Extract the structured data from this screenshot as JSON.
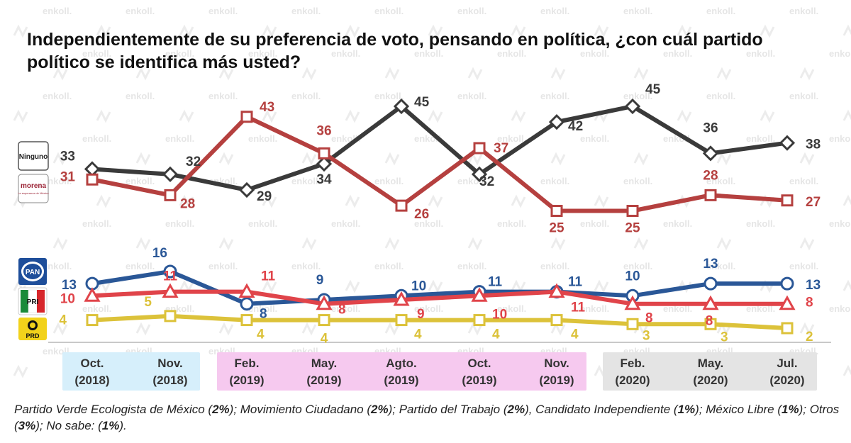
{
  "title": "Independientemente de su preferencia de voto, pensando en política, ¿con cuál partido político se identifica más usted?",
  "watermark": "enkoll.",
  "chart_data": {
    "type": "line",
    "categories": [
      {
        "month": "Oct.",
        "year": "(2018)"
      },
      {
        "month": "Nov.",
        "year": "(2018)"
      },
      {
        "month": "Feb.",
        "year": "(2019)"
      },
      {
        "month": "May.",
        "year": "(2019)"
      },
      {
        "month": "Agto.",
        "year": "(2019)"
      },
      {
        "month": "Oct.",
        "year": "(2019)"
      },
      {
        "month": "Nov.",
        "year": "(2019)"
      },
      {
        "month": "Feb.",
        "year": "(2020)"
      },
      {
        "month": "May.",
        "year": "(2020)"
      },
      {
        "month": "Jul.",
        "year": "(2020)"
      }
    ],
    "category_groups": [
      {
        "from": 0,
        "to": 1,
        "color": "#d6effb"
      },
      {
        "from": 2,
        "to": 6,
        "color": "#f6c9ef"
      },
      {
        "from": 7,
        "to": 9,
        "color": "#e4e4e4"
      }
    ],
    "series": [
      {
        "name": "Ninguno",
        "color": "#3a3a3a",
        "marker": "diamond",
        "values": [
          33,
          32,
          29,
          34,
          45,
          32,
          42,
          45,
          36,
          38
        ]
      },
      {
        "name": "Morena",
        "color": "#b5403f",
        "marker": "square",
        "values": [
          31,
          28,
          43,
          36,
          26,
          37,
          25,
          25,
          28,
          27
        ]
      },
      {
        "name": "PAN",
        "color": "#2a5797",
        "marker": "circle",
        "values": [
          13,
          16,
          8,
          9,
          10,
          11,
          11,
          10,
          13,
          13
        ]
      },
      {
        "name": "PRI",
        "color": "#e0444a",
        "marker": "triangle",
        "values": [
          10,
          11,
          11,
          8,
          9,
          10,
          11,
          8,
          8,
          8
        ]
      },
      {
        "name": "PRD",
        "color": "#dcc23a",
        "marker": "square",
        "values": [
          4,
          5,
          4,
          4,
          4,
          4,
          4,
          3,
          3,
          2
        ]
      }
    ],
    "legend": [
      {
        "series": "Ninguno",
        "text": "Ninguno"
      },
      {
        "series": "Morena",
        "text": "morena",
        "subtext": "La esperanza de México"
      },
      {
        "series": "PAN",
        "text": "PAN"
      },
      {
        "series": "PRI",
        "text": "PRI"
      },
      {
        "series": "PRD",
        "text": "PRD"
      }
    ]
  },
  "footnote": [
    {
      "text": "Partido Verde Ecologista de México (",
      "bold": false
    },
    {
      "text": "2%",
      "bold": true
    },
    {
      "text": "); Movimiento Ciudadano (",
      "bold": false
    },
    {
      "text": "2%",
      "bold": true
    },
    {
      "text": "); Partido del Trabajo (",
      "bold": false
    },
    {
      "text": "2%",
      "bold": true
    },
    {
      "text": "), Candidato Independiente (",
      "bold": false
    },
    {
      "text": "1%",
      "bold": true
    },
    {
      "text": "); México Libre (",
      "bold": false
    },
    {
      "text": "1%",
      "bold": true
    },
    {
      "text": "); Otros (",
      "bold": false
    },
    {
      "text": "3%",
      "bold": true
    },
    {
      "text": "); No sabe: (",
      "bold": false
    },
    {
      "text": "1%",
      "bold": true
    },
    {
      "text": ").",
      "bold": false
    }
  ]
}
